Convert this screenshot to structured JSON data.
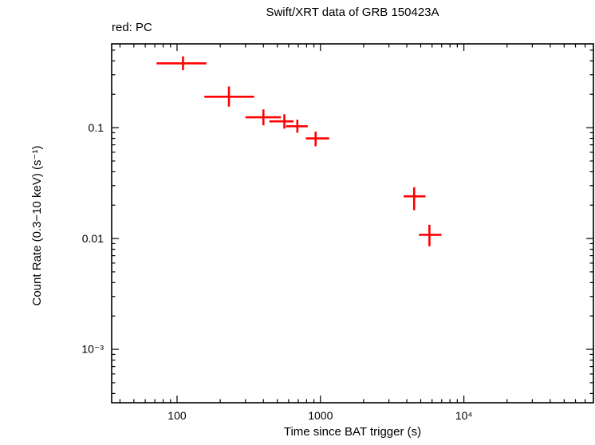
{
  "chart_data": {
    "type": "scatter",
    "title": "Swift/XRT data of GRB 150423A",
    "legend_label": "red: PC",
    "xlabel": "Time since BAT trigger (s)",
    "ylabel": "Count Rate (0.3−10 keV) (s⁻¹)",
    "xscale": "log",
    "yscale": "log",
    "xlim": [
      35,
      80000
    ],
    "ylim": [
      0.00033,
      0.57
    ],
    "grid": false,
    "frame_color": "#000000",
    "x_major_ticks": [
      {
        "value": 100,
        "label": "100"
      },
      {
        "value": 1000,
        "label": "1000"
      },
      {
        "value": 10000,
        "label": "10⁴"
      }
    ],
    "y_major_ticks": [
      {
        "value": 0.1,
        "label": "0.1"
      },
      {
        "value": 0.01,
        "label": "0.01"
      },
      {
        "value": 0.001,
        "label": "10⁻³"
      }
    ],
    "series": [
      {
        "name": "PC",
        "color": "#ff0000",
        "marker": "cross-with-errors",
        "points": [
          {
            "t": 110,
            "t_lo": 72,
            "t_hi": 160,
            "rate": 0.38,
            "rate_lo": 0.33,
            "rate_hi": 0.44
          },
          {
            "t": 230,
            "t_lo": 155,
            "t_hi": 345,
            "rate": 0.19,
            "rate_lo": 0.155,
            "rate_hi": 0.235
          },
          {
            "t": 400,
            "t_lo": 300,
            "t_hi": 530,
            "rate": 0.124,
            "rate_lo": 0.105,
            "rate_hi": 0.146
          },
          {
            "t": 560,
            "t_lo": 440,
            "t_hi": 650,
            "rate": 0.114,
            "rate_lo": 0.098,
            "rate_hi": 0.132
          },
          {
            "t": 690,
            "t_lo": 575,
            "t_hi": 815,
            "rate": 0.103,
            "rate_lo": 0.09,
            "rate_hi": 0.118
          },
          {
            "t": 925,
            "t_lo": 790,
            "t_hi": 1150,
            "rate": 0.08,
            "rate_lo": 0.068,
            "rate_hi": 0.092
          },
          {
            "t": 4500,
            "t_lo": 3800,
            "t_hi": 5400,
            "rate": 0.024,
            "rate_lo": 0.018,
            "rate_hi": 0.029
          },
          {
            "t": 5750,
            "t_lo": 4860,
            "t_hi": 6980,
            "rate": 0.0108,
            "rate_lo": 0.0085,
            "rate_hi": 0.0133
          }
        ]
      }
    ]
  }
}
